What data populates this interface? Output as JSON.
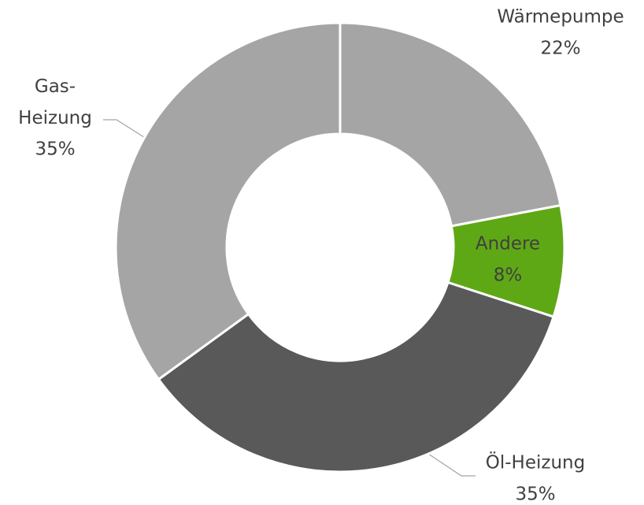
{
  "chart_data": {
    "type": "donut",
    "categories": [
      "Wärmepumpe",
      "Andere",
      "Öl-Heizung",
      "Gas-Heizung"
    ],
    "values": [
      22,
      8,
      35,
      35
    ],
    "value_labels": [
      "22%",
      "8%",
      "35%",
      "35%"
    ],
    "colors": [
      "#a5a5a5",
      "#5fa815",
      "#595959",
      "#a5a5a5"
    ]
  }
}
